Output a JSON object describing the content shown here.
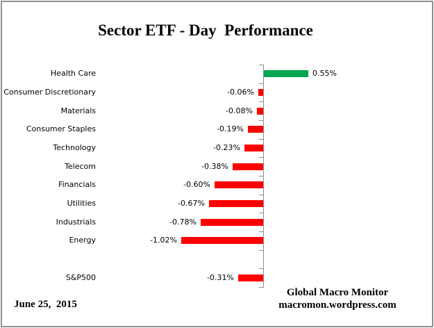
{
  "page": {
    "title": "Sector ETF - Day  Performance",
    "date_label": "June 25,  2015",
    "credit_line1": "Global Macro Monitor",
    "credit_line2": "macromon.wordpress.com"
  },
  "colors": {
    "positive_bar": "#00A650",
    "negative_bar": "#FF0000",
    "axis": "#8C8C8C",
    "border": "#8E8E8E",
    "text": "#000000"
  },
  "chart_data": {
    "type": "bar",
    "orientation": "horizontal",
    "title": "Sector ETF - Day  Performance",
    "xlabel": "",
    "ylabel": "",
    "categories": [
      "Health Care",
      "Consumer Discretionary",
      "Materials",
      "Consumer Staples",
      "Technology",
      "Telecom",
      "Financials",
      "Utilities",
      "Industrials",
      "Energy",
      "",
      "S&P500"
    ],
    "values": [
      0.55,
      -0.06,
      -0.08,
      -0.19,
      -0.23,
      -0.38,
      -0.6,
      -0.67,
      -0.78,
      -1.02,
      null,
      -0.31
    ],
    "value_labels": [
      "0.55%",
      "-0.06%",
      "-0.08%",
      "-0.19%",
      "-0.23%",
      "-0.38%",
      "-0.60%",
      "-0.67%",
      "-0.78%",
      "-1.02%",
      "",
      "-0.31%"
    ],
    "unit": "percent",
    "xlim": [
      -2.1,
      2.1
    ],
    "grid": false,
    "legend": false,
    "data_labels": "at_bar_end",
    "axis_baseline": "zero_vertical_line_with_ticks"
  }
}
